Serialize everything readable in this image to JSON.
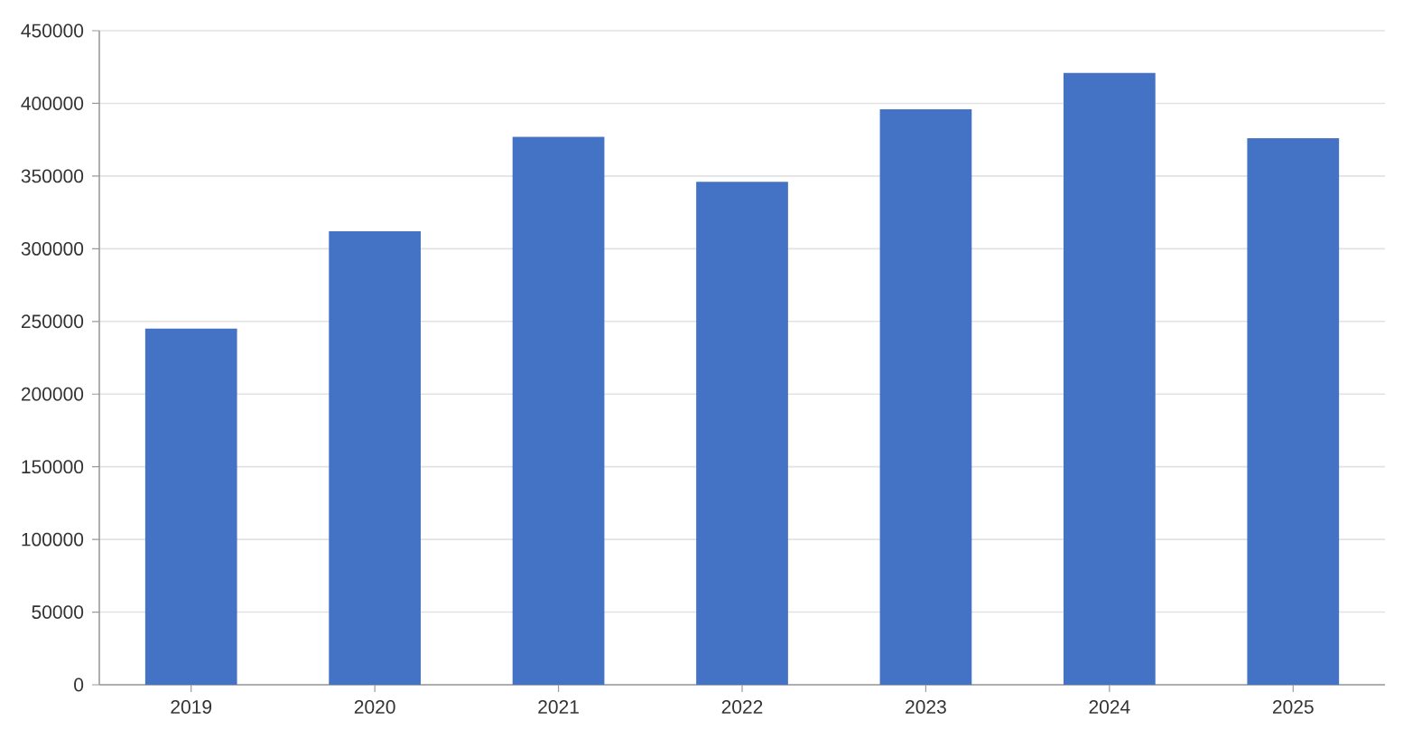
{
  "chart_data": {
    "type": "bar",
    "categories": [
      "2019",
      "2020",
      "2021",
      "2022",
      "2023",
      "2024",
      "2025"
    ],
    "values": [
      245000,
      312000,
      377000,
      346000,
      396000,
      421000,
      376000
    ],
    "color": "#4472c4",
    "ylim": [
      0,
      450000
    ],
    "yticks": [
      0,
      50000,
      100000,
      150000,
      200000,
      250000,
      300000,
      350000,
      400000,
      450000
    ],
    "grid": "y"
  }
}
